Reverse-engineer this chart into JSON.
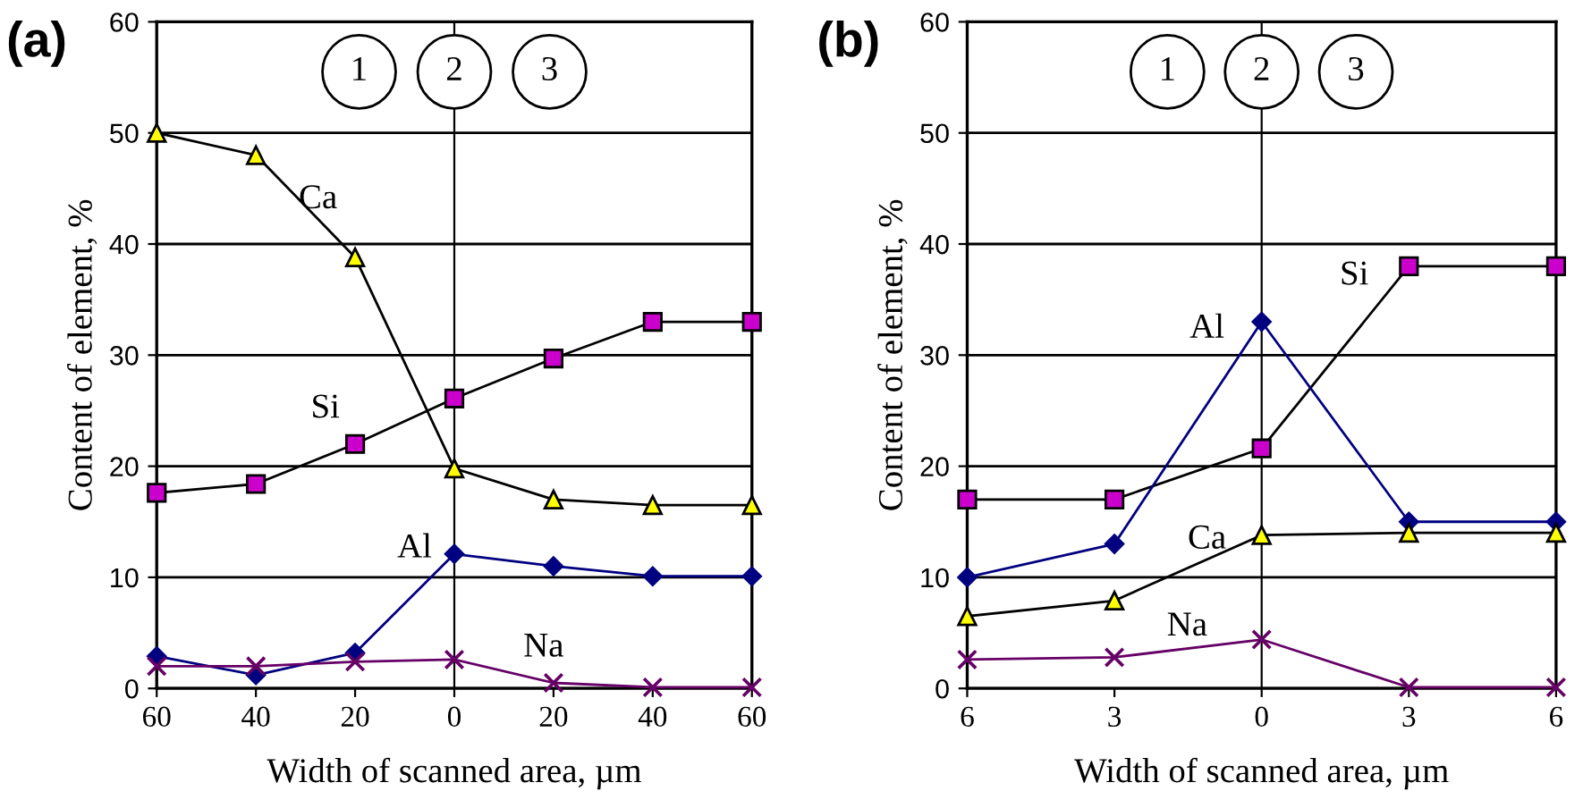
{
  "chart_data": [
    {
      "type": "line",
      "title": "(a)",
      "xlabel": "Width of scanned area, µm",
      "ylabel": "Content of element, %",
      "x": [
        -60,
        -40,
        -20,
        0,
        20,
        40,
        60
      ],
      "series": [
        {
          "name": "Ca",
          "color": "#ffff00",
          "marker": "triangle",
          "values": [
            50,
            48,
            38.8,
            19.8,
            17,
            16.5,
            16.5
          ]
        },
        {
          "name": "Si",
          "color": "#cc00cc",
          "marker": "square",
          "values": [
            17.6,
            18.4,
            22,
            26.1,
            29.7,
            33,
            33
          ]
        },
        {
          "name": "Al",
          "color": "#000080",
          "marker": "diamond",
          "values": [
            2.9,
            1.2,
            3.2,
            12.1,
            11,
            10.1,
            10.1
          ]
        },
        {
          "name": "Na",
          "color": "#660066",
          "marker": "cross",
          "values": [
            2,
            2,
            2.4,
            2.6,
            0.5,
            0.1,
            0.1
          ]
        }
      ],
      "xlim": [
        -60,
        60
      ],
      "xticks": [
        {
          "value": -60,
          "label": "60"
        },
        {
          "value": -40,
          "label": "40"
        },
        {
          "value": -20,
          "label": "20"
        },
        0,
        20,
        40,
        60
      ],
      "ylim": [
        0,
        60
      ],
      "yticks": [
        0,
        10,
        20,
        30,
        40,
        50,
        60
      ],
      "grid": "y",
      "ref_lines": [
        {
          "axis": "x",
          "value": 0
        }
      ],
      "annotations": [
        "1",
        "2",
        "3"
      ]
    },
    {
      "type": "line",
      "title": "(b)",
      "xlabel": "Width of scanned area, µm",
      "ylabel": "Content of element, %",
      "x": [
        -6,
        -3,
        0,
        3,
        6
      ],
      "series": [
        {
          "name": "Si",
          "color": "#cc00cc",
          "marker": "square",
          "values": [
            17,
            17,
            21.6,
            38,
            38
          ]
        },
        {
          "name": "Al",
          "color": "#000080",
          "marker": "diamond",
          "values": [
            10,
            13,
            33,
            15,
            15
          ]
        },
        {
          "name": "Ca",
          "color": "#ffff00",
          "marker": "triangle",
          "values": [
            6.5,
            7.9,
            13.8,
            14,
            14
          ]
        },
        {
          "name": "Na",
          "color": "#660066",
          "marker": "cross",
          "values": [
            2.6,
            2.8,
            4.4,
            0.1,
            0.1
          ]
        }
      ],
      "xlim": [
        -6,
        6
      ],
      "xticks": [
        {
          "value": -6,
          "label": "6"
        },
        {
          "value": -3,
          "label": "3"
        },
        0,
        3,
        6
      ],
      "ylim": [
        0,
        60
      ],
      "yticks": [
        0,
        10,
        20,
        30,
        40,
        50,
        60
      ],
      "grid": "y",
      "ref_lines": [
        {
          "axis": "x",
          "value": 0
        }
      ],
      "annotations": [
        "1",
        "2",
        "3"
      ]
    }
  ]
}
